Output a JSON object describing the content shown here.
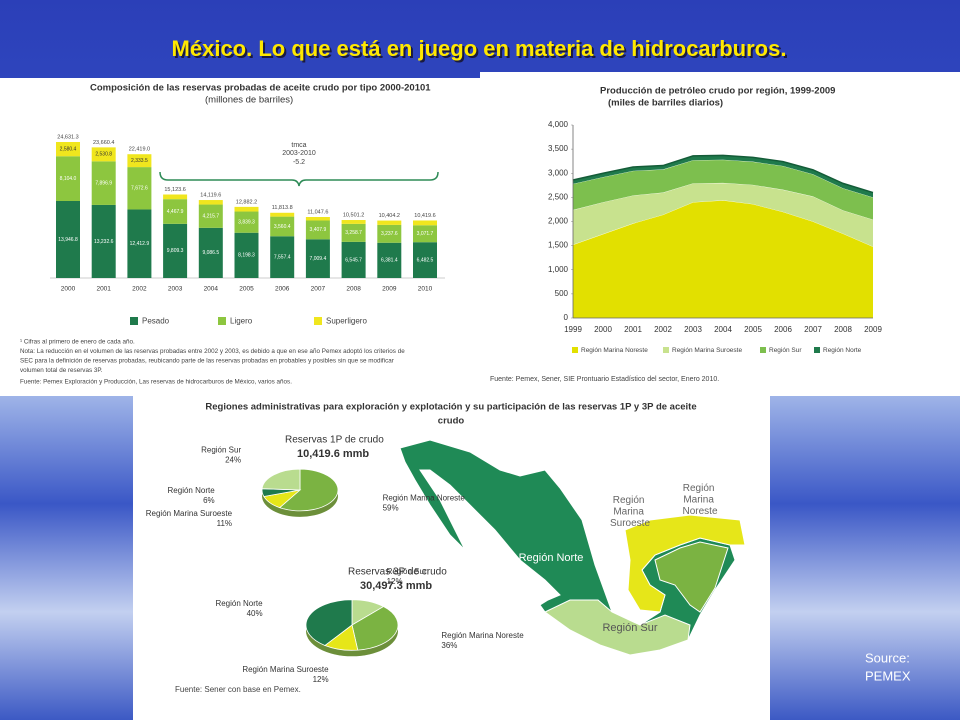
{
  "slide_title": "México. Lo que está en juego en materia de hidrocarburos.",
  "source": [
    "Source:",
    "PEMEX"
  ],
  "chart_data": [
    {
      "type": "bar",
      "stacked": true,
      "title": "Composición de las reservas probadas de aceite crudo por tipo 2000-20101",
      "subtitle": "(millones de barriles)",
      "categories": [
        "2000",
        "2001",
        "2002",
        "2003",
        "2004",
        "2005",
        "2006",
        "2007",
        "2008",
        "2009",
        "2010"
      ],
      "series": [
        {
          "name": "Pesado",
          "color": "#1f7a4c",
          "values": [
            13946.8,
            13232.6,
            12412.9,
            9809.3,
            9086.5,
            8198.3,
            7557.4,
            7009.4,
            6545.7,
            6381.4,
            6482.5
          ],
          "value_labels": [
            "13,946.8",
            "13,232.6",
            "12,412.9",
            "9,809.3",
            "9,086.5",
            "8,198.3",
            "7,557.4",
            "7,009.4",
            "6,545.7",
            "6,381.4",
            "6,482.5"
          ]
        },
        {
          "name": "Ligero",
          "color": "#8dc63f",
          "values": [
            8104.0,
            7896.9,
            7672.6,
            4467.9,
            4215.7,
            3839.3,
            3560.4,
            3407.9,
            3258.7,
            3237.6,
            3071.7
          ],
          "value_labels": [
            "8,104.0",
            "7,896.9",
            "7,672.6",
            "4,467.9",
            "4,215.7",
            "3,839.3",
            "3,560.4",
            "3,407.9",
            "3,258.7",
            "3,237.6",
            "3,071.7"
          ]
        },
        {
          "name": "Superligero",
          "color": "#f0e61e",
          "values": [
            2580.4,
            2530.8,
            2333.5,
            846.4,
            817.4,
            844.6,
            696.0,
            630.3,
            696.8,
            785.2,
            865.4
          ],
          "value_labels": [
            "2,580.4",
            "2,530.8",
            "2,333.5",
            "846.4",
            "817.4",
            "844.6",
            "696.0",
            "630.3",
            "696.8",
            "785.2",
            "865.4"
          ]
        }
      ],
      "totals": [
        "24,631.3",
        "23,660.4",
        "22,419.0",
        "15,123.6",
        "14,119.6",
        "12,882.2",
        "11,813.8",
        "11,047.6",
        "10,501.2",
        "10,404.2",
        "10,419.6"
      ],
      "annotation": [
        "tmca",
        "2003-2010",
        "-5.2"
      ],
      "notes": [
        "¹ Cifras al primero de enero de cada año.",
        "Nota: La reducción en el volumen de las reservas probadas entre 2002 y 2003, es debido a que en ese año Pemex adoptó los criterios de",
        "SEC para la definición de reservas probadas, reubicando parte de las reservas probadas en probables y posibles sin que se modificar",
        "volumen total de reservas 3P.",
        "Fuente: Pemex Exploración y Producción, Las reservas de hidrocarburos de México, varios años."
      ]
    },
    {
      "type": "area",
      "stacked": true,
      "title": "Producción de petróleo crudo por región, 1999-2009",
      "subtitle": "(miles de barriles diarios)",
      "categories": [
        "1999",
        "2000",
        "2001",
        "2002",
        "2003",
        "2004",
        "2005",
        "2006",
        "2007",
        "2008",
        "2009"
      ],
      "series": [
        {
          "name": "Región Marina Noreste",
          "color": "#e2e000",
          "values": [
            1520,
            1740,
            1960,
            2140,
            2400,
            2440,
            2360,
            2200,
            2000,
            1750,
            1480
          ]
        },
        {
          "name": "Región Marina Suroeste",
          "color": "#c8e28e",
          "values": [
            720,
            660,
            580,
            460,
            390,
            360,
            400,
            460,
            520,
            480,
            560
          ]
        },
        {
          "name": "Región Sur",
          "color": "#7dbf4e",
          "values": [
            540,
            520,
            510,
            480,
            480,
            480,
            480,
            490,
            460,
            460,
            460
          ]
        },
        {
          "name": "Región Norte",
          "color": "#1f7a4c",
          "values": [
            80,
            80,
            80,
            80,
            90,
            90,
            90,
            90,
            90,
            100,
            100
          ]
        }
      ],
      "ylim": [
        0,
        4000
      ],
      "yticks": [
        0,
        500,
        {
          "value": 1000,
          "label": "1,000"
        },
        {
          "value": 1500,
          "label": "1,500"
        },
        {
          "value": 2000,
          "label": "2,000"
        },
        {
          "value": 2500,
          "label": "2,500"
        },
        {
          "value": 3000,
          "label": "3,000"
        },
        {
          "value": 3500,
          "label": "3,500"
        },
        {
          "value": 4000,
          "label": "4,000"
        }
      ],
      "source": "Fuente: Pemex, Sener, SIE Prontuario Estadístico del sector, Enero 2010."
    },
    {
      "type": "pie",
      "title": "Reservas 1P de crudo",
      "subtitle": "10,419.6 mmb",
      "categories": [
        "Región Marina Noreste",
        "Región Marina Suroeste",
        "Región Norte",
        "Región Sur"
      ],
      "values": [
        59,
        11,
        6,
        24
      ],
      "value_labels": [
        "59%",
        "11%",
        "6%",
        "24%"
      ],
      "colors": [
        "#7bb342",
        "#e6e619",
        "#1f7a4c",
        "#b9dc8f"
      ]
    },
    {
      "type": "pie",
      "title": "Reservas 3P de crudo",
      "subtitle": "30,497.3 mmb",
      "categories": [
        "Región Sur",
        "Región Marina Noreste",
        "Región Marina Suroeste",
        "Región Norte"
      ],
      "values": [
        12,
        36,
        12,
        40
      ],
      "value_labels": [
        "12%",
        "36%",
        "12%",
        "40%"
      ],
      "colors": [
        "#b9dc8f",
        "#7bb342",
        "#e6e619",
        "#1f7a4c"
      ]
    }
  ],
  "map": {
    "title": [
      "Regiones administrativas para exploración y explotación y su participación de las reservas 1P y 3P de aceite",
      "crudo"
    ],
    "labels": [
      "Región Norte",
      "Región Sur",
      "Región Marina Suroeste",
      "Región Marina Noreste"
    ],
    "source": "Fuente: Sener con base en Pemex."
  }
}
